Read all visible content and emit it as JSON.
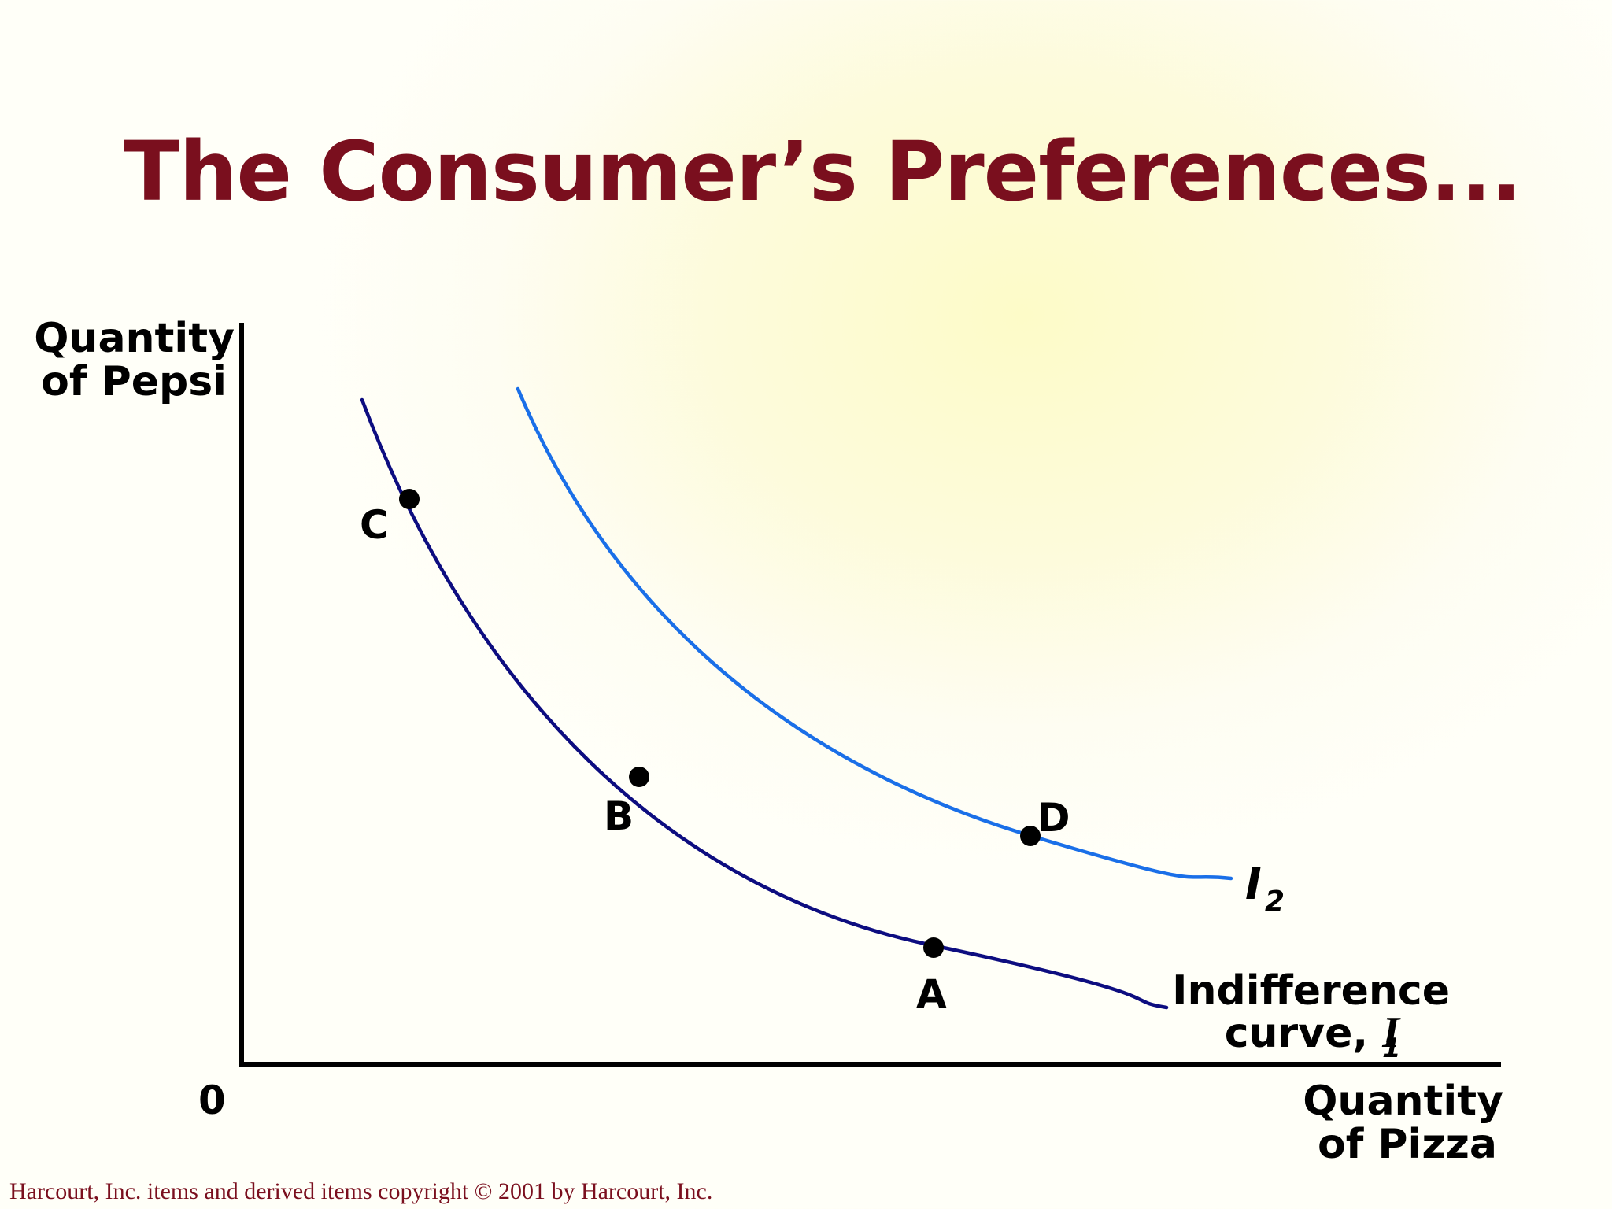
{
  "slide": {
    "title": "The Consumer’s Preferences..."
  },
  "footer": {
    "copyright": "Harcourt, Inc. items and derived items copyright © 2001 by Harcourt, Inc."
  },
  "axes": {
    "y_label_line1": "Quantity",
    "y_label_line2": "of Pepsi",
    "x_label_line1": "Quantity",
    "x_label_line2": "of Pizza",
    "origin": "0"
  },
  "curves": {
    "i1": {
      "label_line1": "Indifference",
      "label_line2_prefix": "curve, ",
      "symbol": "I",
      "subscript": "1",
      "color": "#0d0d80"
    },
    "i2": {
      "symbol": "I",
      "subscript": "2",
      "color": "#1a6fe8"
    }
  },
  "points": {
    "a": "A",
    "b": "B",
    "c": "C",
    "d": "D"
  }
}
